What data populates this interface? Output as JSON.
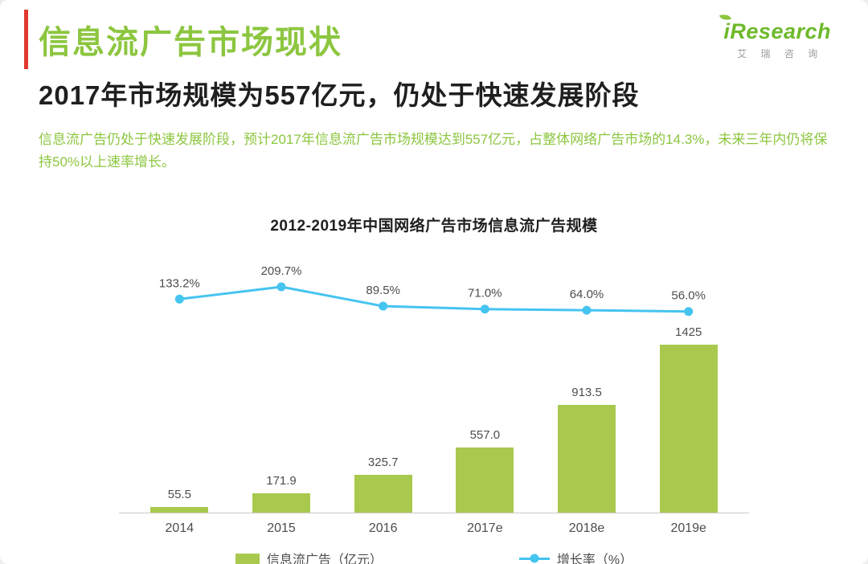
{
  "header": {
    "title": "信息流广告市场现状",
    "subtitle": "2017年市场规模为557亿元，仍处于快速发展阶段",
    "description": "信息流广告仍处于快速发展阶段，预计2017年信息流广告市场规模达到557亿元，占整体网络广告市场的14.3%，未来三年内仍将保持50%以上速率增长。",
    "logo_text": "iResearch",
    "logo_subtext": "艾 瑞 咨 询"
  },
  "colors": {
    "title_green": "#8cc63f",
    "desc_green": "#8cc63f",
    "bar_green": "#a9c94e",
    "line_blue": "#45c4f0",
    "accent_red": "#e0392f",
    "logo_green": "#6eb92b",
    "leaf_green": "#8cc63f"
  },
  "chart_data": {
    "type": "bar",
    "subtype": "bar+line combo",
    "title": "2012-2019年中国网络广告市场信息流广告规模",
    "categories": [
      "2014",
      "2015",
      "2016",
      "2017e",
      "2018e",
      "2019e"
    ],
    "series": [
      {
        "name": "信息流广告（亿元）",
        "type": "bar",
        "values": [
          55.5,
          171.9,
          325.7,
          557.0,
          913.5,
          1425
        ],
        "labels": [
          "55.5",
          "171.9",
          "325.7",
          "557.0",
          "913.5",
          "1425"
        ],
        "color": "#a9c94e"
      },
      {
        "name": "增长率（%）",
        "type": "line",
        "values": [
          133.2,
          209.7,
          89.5,
          71.0,
          64.0,
          56.0
        ],
        "labels": [
          "133.2%",
          "209.7%",
          "89.5%",
          "71.0%",
          "64.0%",
          "56.0%"
        ],
        "color": "#45c4f0"
      }
    ],
    "xlabel": "",
    "ylabel": "",
    "ylim_bar": [
      0,
      1500
    ],
    "grid": false,
    "legend_position": "bottom"
  }
}
